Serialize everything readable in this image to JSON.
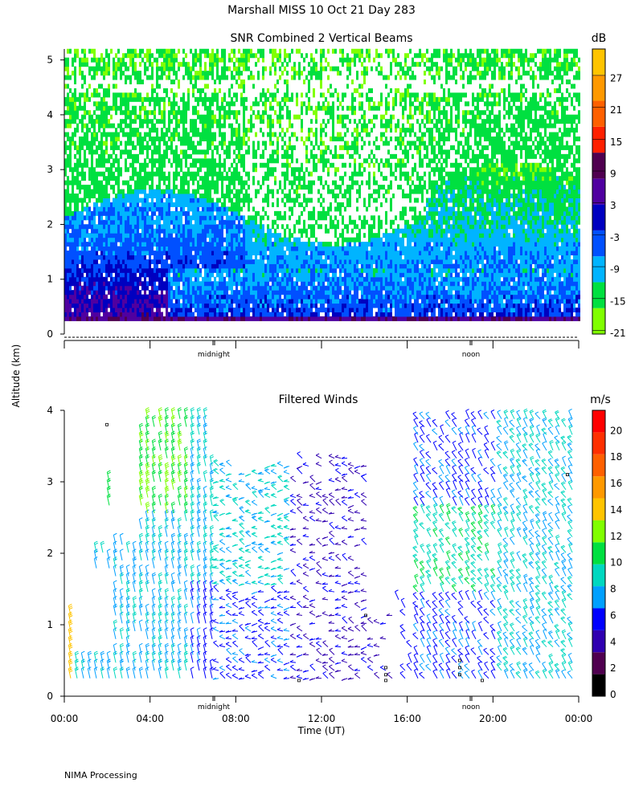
{
  "header": {
    "title": "Marshall MISS   10 Oct 21 Day 283"
  },
  "footer": {
    "text": "NIMA Processing"
  },
  "shared": {
    "ylabel": "Altitude (km)"
  },
  "chart_data": [
    {
      "type": "heatmap",
      "title": "SNR Combined 2 Vertical Beams",
      "ylabel": "Altitude (km)",
      "ylim": [
        0,
        5.2
      ],
      "y_ticks": [
        "0",
        "1",
        "2",
        "3",
        "4",
        "5"
      ],
      "x_markers": [
        "midnight",
        "noon"
      ],
      "colorbar": {
        "unit": "dB",
        "labels": [
          "-21",
          "-15",
          "-9",
          "-3",
          "3",
          "9",
          "15",
          "21",
          "27"
        ],
        "colors": [
          "#80ff00",
          "#00e040",
          "#00b4ff",
          "#0050ff",
          "#0000c0",
          "#5000a0",
          "#500050",
          "#ff2000",
          "#ff6000",
          "#ff9900",
          "#ffc400"
        ]
      },
      "description_values": {
        "surface_layer_km": [
          0.2,
          1.3
        ],
        "boundary_layer_top_km": [
          2.0,
          2.8
        ],
        "clear_band_km": [
          4.3,
          4.6
        ]
      }
    },
    {
      "type": "scatter",
      "subtype": "wind-barbs",
      "title": "Filtered Winds",
      "xlabel": "Time (UT)",
      "ylabel": "Altitude (km)",
      "ylim": [
        0,
        4
      ],
      "y_ticks": [
        "0",
        "1",
        "2",
        "3",
        "4"
      ],
      "x_ticks": [
        "00:00",
        "04:00",
        "08:00",
        "12:00",
        "16:00",
        "20:00",
        "00:00"
      ],
      "x_markers": [
        "midnight",
        "noon"
      ],
      "colorbar": {
        "unit": "m/s",
        "labels": [
          "0",
          "2",
          "4",
          "6",
          "8",
          "10",
          "12",
          "14",
          "16",
          "18",
          "20"
        ],
        "colors": [
          "#000000",
          "#500050",
          "#3000b0",
          "#0000ff",
          "#00a0ff",
          "#00d8c0",
          "#00e040",
          "#80ff00",
          "#ffc400",
          "#ff9900",
          "#ff6000",
          "#ff3000",
          "#ff0000"
        ]
      }
    }
  ]
}
